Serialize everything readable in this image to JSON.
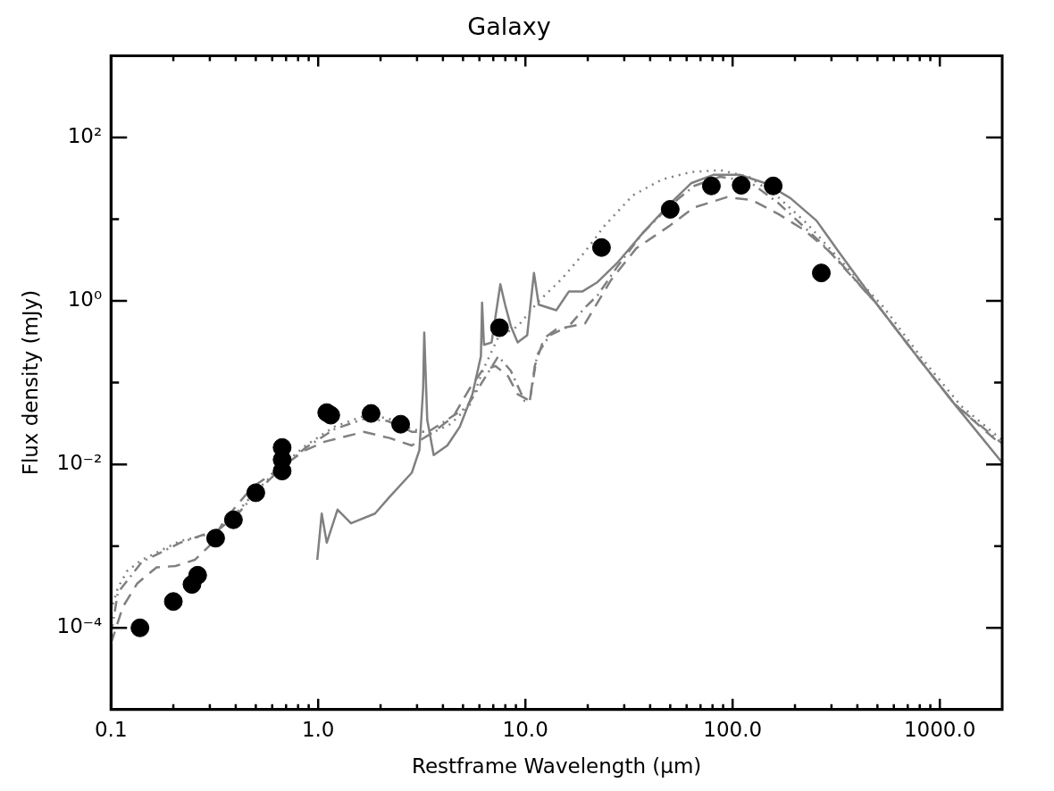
{
  "chart_data": {
    "type": "line",
    "title": "Galaxy",
    "xlabel": "Restframe Wavelength (μm)",
    "ylabel": "Flux density (mJy)",
    "log": "xy",
    "xlim": [
      0.1,
      2000
    ],
    "ylim": [
      1e-05,
      1000
    ],
    "xticks": [
      {
        "value": 0.1,
        "label": "0.1"
      },
      {
        "value": 0.2,
        "label": null
      },
      {
        "value": 0.3,
        "label": null
      },
      {
        "value": 0.4,
        "label": null
      },
      {
        "value": 0.5,
        "label": null
      },
      {
        "value": 0.6,
        "label": null
      },
      {
        "value": 0.7,
        "label": null
      },
      {
        "value": 0.8,
        "label": null
      },
      {
        "value": 0.9,
        "label": null
      },
      {
        "value": 1,
        "label": "1.0"
      },
      {
        "value": 2,
        "label": null
      },
      {
        "value": 3,
        "label": null
      },
      {
        "value": 4,
        "label": null
      },
      {
        "value": 5,
        "label": null
      },
      {
        "value": 6,
        "label": null
      },
      {
        "value": 7,
        "label": null
      },
      {
        "value": 8,
        "label": null
      },
      {
        "value": 9,
        "label": null
      },
      {
        "value": 10,
        "label": "10.0"
      },
      {
        "value": 20,
        "label": null
      },
      {
        "value": 30,
        "label": null
      },
      {
        "value": 40,
        "label": null
      },
      {
        "value": 50,
        "label": null
      },
      {
        "value": 60,
        "label": null
      },
      {
        "value": 70,
        "label": null
      },
      {
        "value": 80,
        "label": null
      },
      {
        "value": 90,
        "label": null
      },
      {
        "value": 100,
        "label": "100.0"
      },
      {
        "value": 200,
        "label": null
      },
      {
        "value": 300,
        "label": null
      },
      {
        "value": 400,
        "label": null
      },
      {
        "value": 500,
        "label": null
      },
      {
        "value": 600,
        "label": null
      },
      {
        "value": 700,
        "label": null
      },
      {
        "value": 800,
        "label": null
      },
      {
        "value": 900,
        "label": null
      },
      {
        "value": 1000,
        "label": "1000.0"
      }
    ],
    "yticks": [
      {
        "value": 0.0001,
        "label": "10⁻⁴"
      },
      {
        "value": 0.001,
        "label": null
      },
      {
        "value": 0.01,
        "label": "10⁻²"
      },
      {
        "value": 0.1,
        "label": null
      },
      {
        "value": 1,
        "label": "10⁰"
      },
      {
        "value": 10,
        "label": null
      },
      {
        "value": 100,
        "label": "10²"
      }
    ],
    "series": [
      {
        "color": "#808080",
        "line_style": "dotted",
        "x": [
          0.1,
          0.108,
          0.12,
          0.141,
          0.175,
          0.216,
          0.268,
          0.332,
          0.411,
          0.509,
          0.666,
          0.87,
          1.2,
          1.66,
          2.16,
          2.83,
          3.5,
          4.34,
          5.37,
          6.3,
          7.4,
          9.2,
          11.4,
          14.9,
          19.4,
          24,
          33,
          45.7,
          63,
          87,
          120,
          166,
          228,
          350,
          537,
          824,
          1265,
          2000
        ],
        "values": [
          0.00016,
          0.00031,
          0.0005,
          0.00068,
          0.00089,
          0.00116,
          0.0013,
          0.0016,
          0.0027,
          0.0049,
          0.0095,
          0.017,
          0.029,
          0.039,
          0.037,
          0.027,
          0.024,
          0.031,
          0.052,
          0.15,
          0.36,
          0.49,
          0.95,
          1.83,
          4.0,
          8.2,
          19.6,
          30.6,
          37.8,
          39.8,
          33,
          18.6,
          8.9,
          2.7,
          0.83,
          0.195,
          0.052,
          0.0198
        ]
      },
      {
        "color": "#808080",
        "line_style": "solid",
        "x": [
          0.99,
          1.04,
          1.1,
          1.24,
          1.44,
          1.88,
          2.21,
          2.83,
          3.08,
          3.21,
          3.25,
          3.36,
          3.61,
          4.2,
          4.83,
          5.55,
          6.1,
          6.18,
          6.31,
          6.87,
          7.57,
          7.98,
          8.51,
          9.18,
          10.2,
          11.0,
          11.6,
          14.1,
          16.2,
          18.8,
          22.3,
          27.7,
          36.9,
          49.3,
          63,
          80.7,
          108,
          144,
          190,
          254,
          325,
          499,
          765,
          1175,
          2000
        ],
        "values": [
          0.00068,
          0.0025,
          0.0011,
          0.0028,
          0.0019,
          0.0025,
          0.004,
          0.0079,
          0.015,
          0.084,
          0.41,
          0.035,
          0.013,
          0.017,
          0.029,
          0.072,
          0.21,
          0.95,
          0.29,
          0.31,
          1.6,
          0.9,
          0.49,
          0.31,
          0.38,
          2.2,
          0.9,
          0.77,
          1.3,
          1.3,
          1.7,
          2.9,
          6.8,
          15,
          27.5,
          34.9,
          34.9,
          27.5,
          18.1,
          9.6,
          4.0,
          0.9,
          0.22,
          0.055,
          0.0105
        ]
      },
      {
        "color": "#808080",
        "line_style": "dashed",
        "x": [
          0.1,
          0.114,
          0.134,
          0.166,
          0.205,
          0.254,
          0.298,
          0.35,
          0.411,
          0.483,
          0.6,
          0.87,
          1.08,
          1.66,
          2.21,
          2.83,
          3.61,
          4.48,
          5.37,
          6.18,
          7.17,
          8.25,
          9.18,
          10.5,
          11.1,
          12.3,
          14.1,
          19.4,
          25.9,
          34.3,
          49.3,
          65.2,
          93.8,
          124,
          166,
          221,
          305,
          499,
          765,
          1175,
          2000
        ],
        "values": [
          6.4e-05,
          0.00018,
          0.00035,
          0.00055,
          0.00057,
          0.00068,
          0.001,
          0.002,
          0.0033,
          0.0053,
          0.0077,
          0.015,
          0.019,
          0.025,
          0.021,
          0.017,
          0.025,
          0.038,
          0.084,
          0.14,
          0.16,
          0.12,
          0.072,
          0.06,
          0.16,
          0.35,
          0.45,
          0.53,
          1.8,
          4.4,
          8.2,
          13.9,
          18.6,
          17.1,
          11.6,
          7.4,
          3.7,
          0.9,
          0.22,
          0.055,
          0.017
        ]
      },
      {
        "color": "#808080",
        "line_style": "dashdot",
        "x": [
          0.1,
          0.108,
          0.141,
          0.216,
          0.332,
          0.411,
          0.509,
          0.666,
          0.87,
          1.2,
          1.66,
          2.16,
          2.83,
          3.4,
          5.2,
          6.45,
          7.4,
          8.5,
          9.9,
          10.5,
          11.4,
          13.1,
          16.2,
          19.4,
          22.3,
          27.7,
          36.9,
          49.3,
          65.2,
          87,
          120,
          166,
          274,
          499,
          765,
          1175,
          2000
        ],
        "values": [
          8.3e-05,
          0.00027,
          0.00064,
          0.0011,
          0.0016,
          0.0025,
          0.0047,
          0.009,
          0.016,
          0.027,
          0.036,
          0.034,
          0.025,
          0.025,
          0.05,
          0.12,
          0.21,
          0.14,
          0.06,
          0.06,
          0.22,
          0.38,
          0.49,
          0.83,
          1.17,
          2.6,
          6.8,
          14.3,
          25.5,
          33,
          29,
          15.8,
          4.85,
          0.9,
          0.22,
          0.055,
          0.018
        ]
      },
      {
        "type": "scatter",
        "color": "#000000",
        "marker": "circle",
        "x": [
          0.138,
          0.2,
          0.246,
          0.262,
          0.32,
          0.39,
          0.5,
          0.67,
          0.67,
          0.67,
          1.1,
          1.15,
          1.8,
          2.5,
          7.5,
          23.3,
          50,
          79,
          110,
          157,
          268
        ],
        "values": [
          0.0001,
          0.00021,
          0.00034,
          0.00044,
          0.00125,
          0.0021,
          0.0045,
          0.0083,
          0.0114,
          0.0161,
          0.043,
          0.04,
          0.042,
          0.031,
          0.47,
          4.5,
          13.2,
          25.5,
          26,
          25.5,
          2.2
        ]
      }
    ]
  }
}
